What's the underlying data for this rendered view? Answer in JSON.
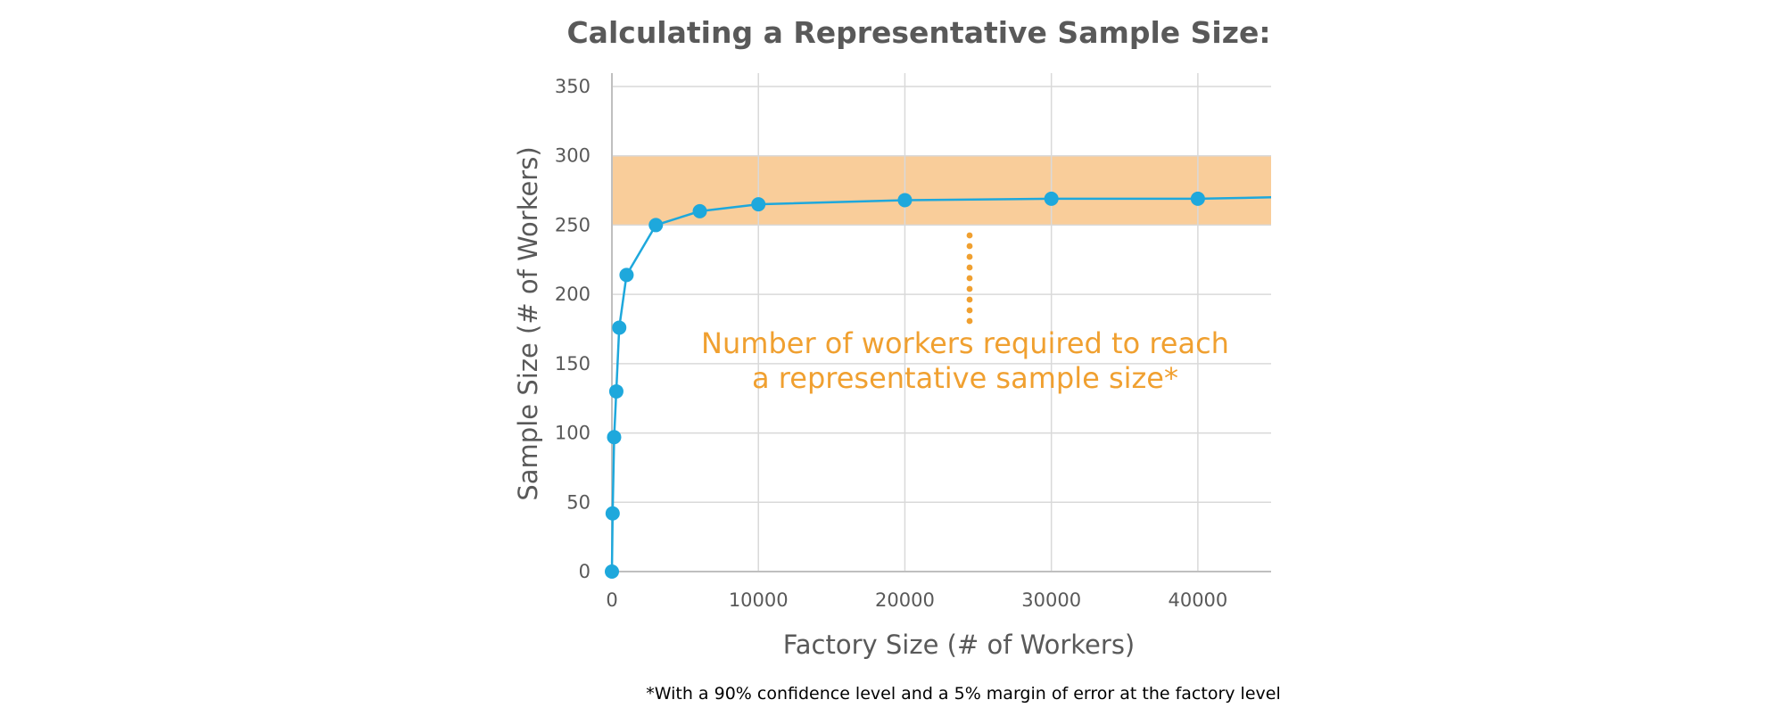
{
  "chart_data": {
    "type": "line",
    "title": "Calculating a Representative Sample Size:",
    "xlabel": "Factory Size (# of Workers)",
    "ylabel": "Sample Size (# of Workers)",
    "xlim": [
      0,
      45000
    ],
    "ylim": [
      0,
      350
    ],
    "x_ticks": [
      0,
      10000,
      20000,
      30000,
      40000
    ],
    "y_ticks": [
      0,
      50,
      100,
      150,
      200,
      250,
      300,
      350
    ],
    "grid": true,
    "series": [
      {
        "x": [
          0,
          50,
          150,
          300,
          500,
          1000,
          3000,
          6000,
          10000,
          20000,
          30000,
          40000,
          45000
        ],
        "y": [
          0,
          42,
          97,
          130,
          176,
          214,
          250,
          260,
          265,
          268,
          269,
          269,
          270
        ],
        "markers": [
          true,
          true,
          true,
          true,
          true,
          true,
          true,
          true,
          true,
          true,
          true,
          true,
          false
        ],
        "color": "#1ea8dc"
      }
    ],
    "band": {
      "y_from": 250,
      "y_to": 300,
      "color": "#f9cd9a"
    },
    "annotation": {
      "lines": [
        "Number of workers required to reach",
        "a representative sample size*"
      ],
      "color": "#f0a030"
    },
    "footnote": "*With a 90% confidence level and a 5% margin of error at the factory level"
  }
}
